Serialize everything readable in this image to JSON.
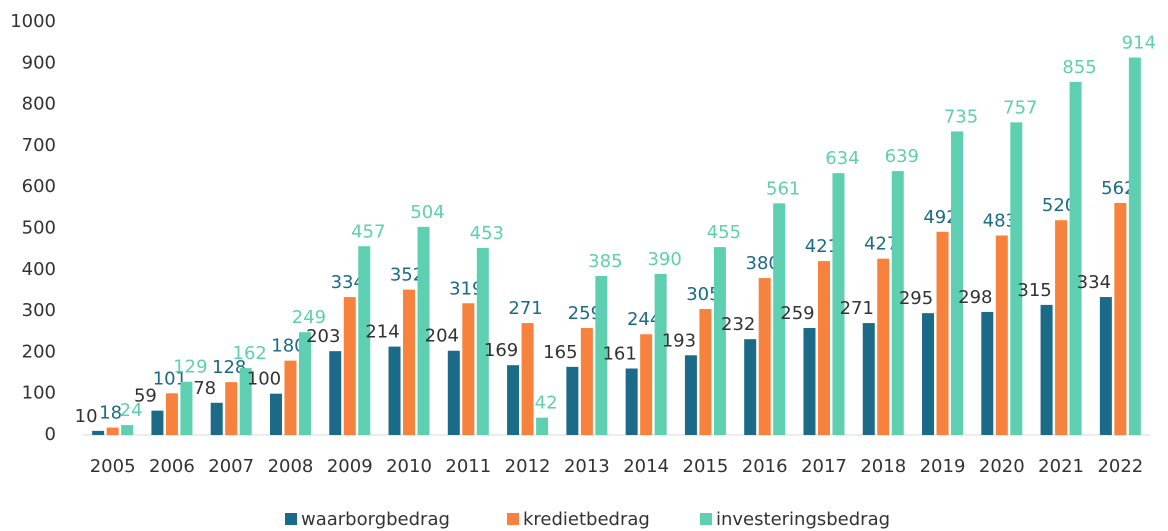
{
  "chart_data": {
    "type": "bar",
    "categories": [
      "2005",
      "2006",
      "2007",
      "2008",
      "2009",
      "2010",
      "2011",
      "2012",
      "2013",
      "2014",
      "2015",
      "2016",
      "2017",
      "2018",
      "2019",
      "2020",
      "2021",
      "2022"
    ],
    "series": [
      {
        "name": "waarborgbedrag",
        "color": "#1b6a87",
        "label_color": "#333333",
        "values": [
          10,
          59,
          78,
          100,
          203,
          214,
          204,
          169,
          165,
          161,
          193,
          232,
          259,
          271,
          295,
          298,
          315,
          334
        ]
      },
      {
        "name": "kredietbedrag",
        "color": "#f7823d",
        "label_color": "#1b6a87",
        "values": [
          18,
          101,
          128,
          180,
          334,
          352,
          319,
          271,
          259,
          244,
          305,
          380,
          421,
          427,
          492,
          483,
          520,
          562
        ]
      },
      {
        "name": "investeringsbedrag",
        "color": "#5ecfb0",
        "label_color": "#5ecfb0",
        "values": [
          24,
          129,
          162,
          249,
          457,
          504,
          453,
          42,
          385,
          390,
          455,
          561,
          634,
          639,
          735,
          757,
          855,
          914
        ]
      }
    ],
    "ylim": [
      0,
      1000
    ],
    "yticks": [
      0,
      100,
      200,
      300,
      400,
      500,
      600,
      700,
      800,
      900,
      1000
    ],
    "grid": false,
    "legend": "bottom"
  }
}
